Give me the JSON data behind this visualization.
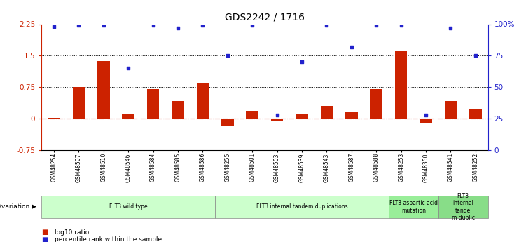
{
  "title": "GDS2242 / 1716",
  "samples": [
    "GSM48254",
    "GSM48507",
    "GSM48510",
    "GSM48546",
    "GSM48584",
    "GSM48585",
    "GSM48586",
    "GSM48255",
    "GSM48501",
    "GSM48503",
    "GSM48539",
    "GSM48543",
    "GSM48587",
    "GSM48588",
    "GSM48253",
    "GSM48350",
    "GSM48541",
    "GSM48252"
  ],
  "log10_ratio": [
    0.02,
    0.76,
    1.38,
    0.12,
    0.7,
    0.42,
    0.85,
    -0.18,
    0.18,
    -0.05,
    0.12,
    0.3,
    0.15,
    0.7,
    1.62,
    -0.1,
    0.42,
    0.22
  ],
  "percentile_rank": [
    98,
    99,
    99,
    65,
    99,
    97,
    99,
    75,
    99,
    28,
    70,
    99,
    82,
    99,
    99,
    28,
    97,
    75
  ],
  "ylim_left": [
    -0.75,
    2.25
  ],
  "ylim_right": [
    0,
    100
  ],
  "yticks_left": [
    -0.75,
    0,
    0.75,
    1.5,
    2.25
  ],
  "ytick_labels_left": [
    "-0.75",
    "0",
    "0.75",
    "1.5",
    "2.25"
  ],
  "yticks_right": [
    0,
    25,
    50,
    75,
    100
  ],
  "ytick_labels_right": [
    "0",
    "25",
    "50",
    "75",
    "100%"
  ],
  "hlines": [
    0.75,
    1.5
  ],
  "bar_color": "#cc2200",
  "scatter_color": "#2222cc",
  "groups": [
    {
      "label": "FLT3 wild type",
      "start": 0,
      "end": 7,
      "color": "#ccffcc"
    },
    {
      "label": "FLT3 internal tandem duplications",
      "start": 7,
      "end": 14,
      "color": "#ccffcc"
    },
    {
      "label": "FLT3 aspartic acid\nmutation",
      "start": 14,
      "end": 16,
      "color": "#99ee99"
    },
    {
      "label": "FLT3\ninternal\ntande\nm duplic",
      "start": 16,
      "end": 18,
      "color": "#88dd88"
    }
  ],
  "genotype_label": "genotype/variation",
  "legend_items": [
    {
      "label": "log10 ratio",
      "color": "#cc2200"
    },
    {
      "label": "percentile rank within the sample",
      "color": "#2222cc"
    }
  ],
  "left_axis_color": "#cc2200",
  "right_axis_color": "#2222cc",
  "title_fontsize": 10,
  "bar_width": 0.5,
  "figsize": [
    7.41,
    3.45
  ],
  "dpi": 100
}
